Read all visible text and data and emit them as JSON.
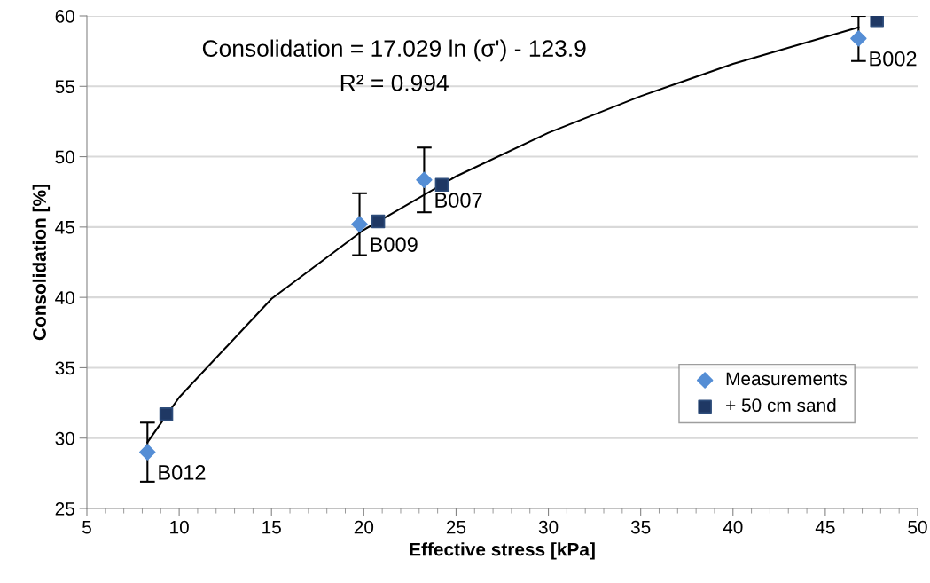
{
  "chart_data": {
    "type": "scatter",
    "xlabel": "Effective stress [kPa]",
    "ylabel": "Consolidation [%]",
    "xlim": [
      5,
      50
    ],
    "xticks": [
      5,
      10,
      15,
      20,
      25,
      30,
      35,
      40,
      45,
      50
    ],
    "ylim": [
      25,
      60
    ],
    "yticks": [
      25,
      30,
      35,
      40,
      45,
      50,
      55,
      60
    ],
    "grid": "y",
    "legend": "bottom right",
    "series": [
      {
        "type": "line",
        "color": "#000000",
        "marker": "none",
        "x": [
          8.28,
          10,
          15,
          20,
          25,
          30,
          35,
          40,
          46.8
        ],
        "values": [
          29.7,
          32.9,
          39.9,
          44.8,
          48.6,
          51.7,
          54.3,
          56.6,
          59.2
        ]
      },
      {
        "name": "Measurements",
        "color": "#558ed5",
        "marker": "diamond",
        "x": [
          8.28,
          19.77,
          23.27,
          46.8
        ],
        "values": [
          29.0,
          45.2,
          48.35,
          58.4
        ],
        "errors": [
          2.1,
          2.2,
          2.3,
          1.6
        ]
      },
      {
        "name": "+ 50 cm sand",
        "color": "#1f3864",
        "marker": "square",
        "x": [
          9.3,
          20.78,
          24.23,
          47.8
        ],
        "values": [
          31.7,
          45.4,
          48.0,
          59.7
        ]
      }
    ],
    "annotations": [
      "Consolidation = 17.029 ln (σ') - 123.9",
      "R² = 0.994",
      {
        "text": "B012",
        "x": 8.28,
        "y": 29.0
      },
      {
        "text": "B009",
        "x": 19.77,
        "y": 45.2
      },
      {
        "text": "B007",
        "x": 23.27,
        "y": 48.35
      },
      {
        "text": "B002",
        "x": 46.8,
        "y": 58.4
      }
    ]
  }
}
